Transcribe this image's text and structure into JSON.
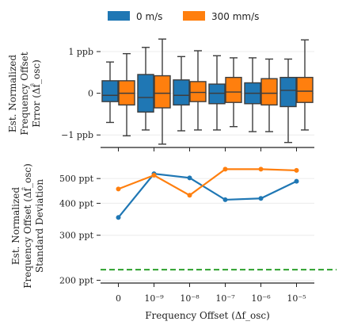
{
  "legend": {
    "items": [
      {
        "label": "0 m/s",
        "color": "#1f77b4"
      },
      {
        "label": "300 mm/s",
        "color": "#ff7f0e"
      }
    ]
  },
  "chart_data": [
    {
      "type": "box",
      "x_ticks": [
        "0",
        "10⁻⁹",
        "10⁻⁸",
        "10⁻⁷",
        "10⁻⁶",
        "10⁻⁵"
      ],
      "ylabel_lines": [
        "Est. Normalized",
        "Frequency Offset",
        "Error (Δf̂_osc)"
      ],
      "y_ticks": [
        {
          "value": 1,
          "label": "1 ppb"
        },
        {
          "value": 0,
          "label": "0"
        },
        {
          "value": -1,
          "label": "−1 ppb"
        }
      ],
      "ylim": [
        -1.3,
        1.4
      ],
      "series": [
        {
          "name": "0 m/s",
          "color": "#1f77b4",
          "boxes": [
            {
              "whislo": -0.7,
              "q1": -0.2,
              "med": -0.05,
              "q3": 0.3,
              "whishi": 0.75
            },
            {
              "whislo": -0.88,
              "q1": -0.45,
              "med": -0.1,
              "q3": 0.45,
              "whishi": 1.1
            },
            {
              "whislo": -0.9,
              "q1": -0.28,
              "med": -0.05,
              "q3": 0.32,
              "whishi": 0.88
            },
            {
              "whislo": -0.88,
              "q1": -0.25,
              "med": 0.0,
              "q3": 0.22,
              "whishi": 0.9
            },
            {
              "whislo": -0.92,
              "q1": -0.25,
              "med": 0.0,
              "q3": 0.25,
              "whishi": 0.85
            },
            {
              "whislo": -1.18,
              "q1": -0.32,
              "med": 0.07,
              "q3": 0.38,
              "whishi": 0.82
            }
          ]
        },
        {
          "name": "300 mm/s",
          "color": "#ff7f0e",
          "boxes": [
            {
              "whislo": -1.02,
              "q1": -0.28,
              "med": 0.0,
              "q3": 0.3,
              "whishi": 0.95
            },
            {
              "whislo": -1.22,
              "q1": -0.35,
              "med": 0.0,
              "q3": 0.42,
              "whishi": 1.3
            },
            {
              "whislo": -0.88,
              "q1": -0.2,
              "med": 0.02,
              "q3": 0.28,
              "whishi": 1.02
            },
            {
              "whislo": -0.8,
              "q1": -0.22,
              "med": 0.03,
              "q3": 0.38,
              "whishi": 0.85
            },
            {
              "whislo": -0.92,
              "q1": -0.28,
              "med": 0.0,
              "q3": 0.35,
              "whishi": 0.82
            },
            {
              "whislo": -0.88,
              "q1": -0.22,
              "med": 0.05,
              "q3": 0.38,
              "whishi": 1.28
            }
          ]
        }
      ]
    },
    {
      "type": "line",
      "x_ticks": [
        "0",
        "10⁻⁹",
        "10⁻⁸",
        "10⁻⁷",
        "10⁻⁶",
        "10⁻⁵"
      ],
      "xlabel": "Frequency Offset (Δf_osc)",
      "ylabel_lines": [
        "Est. Normalized",
        "Frequency Offset (Δf̂_osc)",
        "Standard Deviation"
      ],
      "y_scale": "log",
      "y_ticks": [
        {
          "value": 200,
          "label": "200 ppt"
        },
        {
          "value": 300,
          "label": "300 ppt"
        },
        {
          "value": 400,
          "label": "400 ppt"
        },
        {
          "value": 500,
          "label": "500 ppt"
        }
      ],
      "ylim": [
        195,
        590
      ],
      "reference_line": {
        "value": 220,
        "color": "#2ca02c",
        "style": "dashed"
      },
      "series": [
        {
          "name": "0 m/s",
          "color": "#1f77b4",
          "values": [
            352,
            522,
            503,
            413,
            418,
            488
          ]
        },
        {
          "name": "300 mm/s",
          "color": "#ff7f0e",
          "values": [
            455,
            515,
            430,
            544,
            544,
            538
          ]
        }
      ]
    }
  ]
}
